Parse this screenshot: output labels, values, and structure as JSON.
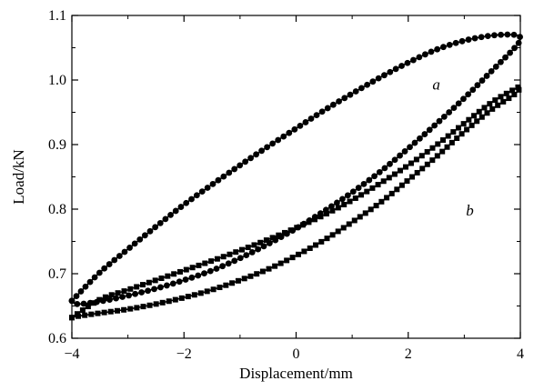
{
  "chart_data": {
    "type": "line",
    "xlabel": "Displacement/mm",
    "ylabel": "Load/kN",
    "xlim": [
      -4,
      4
    ],
    "ylim": [
      0.6,
      1.1
    ],
    "x_ticks": [
      "−4",
      "−2",
      "0",
      "2",
      "4"
    ],
    "y_ticks": [
      "0.6",
      "0.7",
      "0.8",
      "0.9",
      "1.0",
      "1.1"
    ],
    "x_tick_values": [
      -4,
      -2,
      0,
      2,
      4
    ],
    "y_tick_values": [
      0.6,
      0.7,
      0.8,
      0.9,
      1.0,
      1.1
    ],
    "grid": false,
    "series": [
      {
        "name": "a",
        "marker": "circle",
        "color": "#000000",
        "x": [
          -4.0,
          -3.5,
          -3.0,
          -2.5,
          -2.0,
          -1.5,
          -1.0,
          -0.5,
          0.0,
          0.5,
          1.0,
          1.5,
          2.0,
          2.5,
          3.0,
          3.5,
          3.9,
          4.0,
          3.9,
          3.5,
          3.0,
          2.5,
          2.0,
          1.5,
          1.0,
          0.5,
          0.0,
          -0.5,
          -1.0,
          -1.5,
          -2.0,
          -2.5,
          -3.0,
          -3.5,
          -3.9,
          -4.0
        ],
        "y": [
          0.658,
          0.702,
          0.738,
          0.773,
          0.807,
          0.838,
          0.868,
          0.897,
          0.925,
          0.953,
          0.979,
          1.004,
          1.027,
          1.047,
          1.061,
          1.069,
          1.07,
          1.064,
          1.05,
          1.015,
          0.972,
          0.932,
          0.894,
          0.858,
          0.826,
          0.797,
          0.77,
          0.746,
          0.724,
          0.705,
          0.69,
          0.677,
          0.666,
          0.657,
          0.653,
          0.658
        ]
      },
      {
        "name": "b",
        "marker": "square",
        "color": "#000000",
        "x": [
          -4.0,
          -3.5,
          -3.0,
          -2.5,
          -2.0,
          -1.5,
          -1.0,
          -0.5,
          0.0,
          0.5,
          1.0,
          1.5,
          2.0,
          2.5,
          3.0,
          3.5,
          3.9,
          4.0,
          3.9,
          3.5,
          3.0,
          2.5,
          2.0,
          1.5,
          1.0,
          0.5,
          0.0,
          -0.5,
          -1.0,
          -1.5,
          -2.0,
          -2.5,
          -3.0,
          -3.5,
          -3.9,
          -4.0
        ],
        "y": [
          0.632,
          0.66,
          0.675,
          0.69,
          0.705,
          0.72,
          0.736,
          0.753,
          0.771,
          0.791,
          0.814,
          0.84,
          0.868,
          0.899,
          0.933,
          0.966,
          0.986,
          0.99,
          0.978,
          0.955,
          0.92,
          0.881,
          0.845,
          0.81,
          0.78,
          0.752,
          0.728,
          0.707,
          0.69,
          0.675,
          0.663,
          0.653,
          0.645,
          0.639,
          0.634,
          0.632
        ]
      }
    ],
    "annotations": [
      {
        "text": "a",
        "x": 2.5,
        "y": 0.985
      },
      {
        "text": "b",
        "x": 3.1,
        "y": 0.79
      }
    ]
  }
}
